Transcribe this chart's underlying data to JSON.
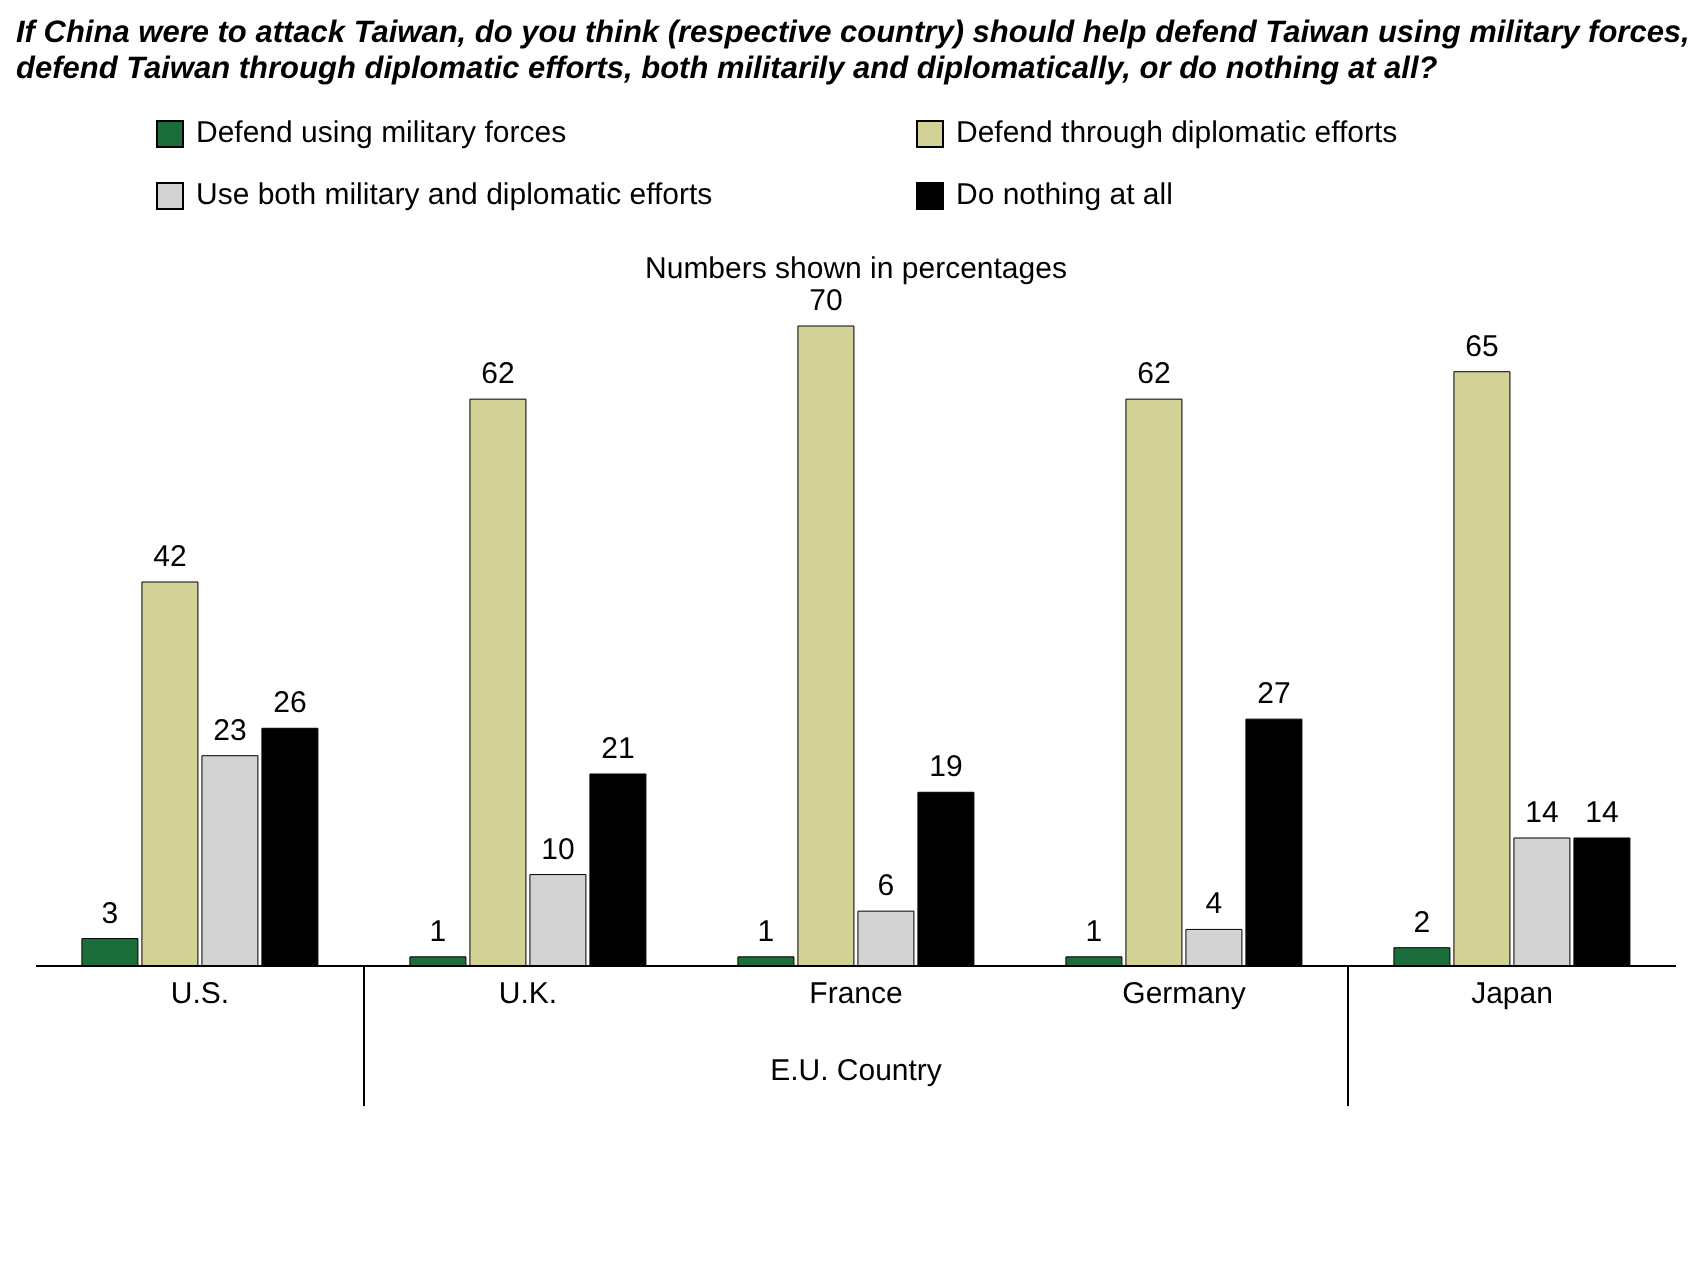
{
  "chart_data": {
    "type": "bar",
    "title": "If China were to attack Taiwan, do you think (respective country) should help defend Taiwan using military forces, defend Taiwan through diplomatic efforts, both militarily and diplomatically, or do nothing at all?",
    "subtitle": "Numbers shown in percentages",
    "xlabel": "E.U. Country",
    "categories": [
      "U.S.",
      "U.K.",
      "France",
      "Germany",
      "Japan"
    ],
    "series": [
      {
        "name": "Defend using military forces",
        "color": "#1b6e3c",
        "values": [
          3,
          1,
          1,
          1,
          2
        ]
      },
      {
        "name": "Defend through diplomatic efforts",
        "color": "#d2d296",
        "values": [
          42,
          62,
          70,
          62,
          65
        ]
      },
      {
        "name": "Use both military and diplomatic efforts",
        "color": "#d3d3d3",
        "values": [
          23,
          10,
          6,
          4,
          14
        ]
      },
      {
        "name": "Do nothing at all",
        "color": "#000000",
        "values": [
          26,
          21,
          19,
          27,
          14
        ]
      }
    ],
    "data_labels": true,
    "legend": "top",
    "grid": false
  }
}
